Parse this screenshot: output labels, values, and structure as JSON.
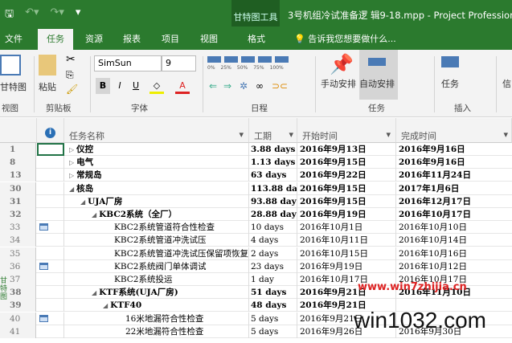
{
  "titlebar": {
    "tool_context": "甘特图工具",
    "title": "3号机组冷试准备逻 辑9-18.mpp - Project Professional"
  },
  "tabs": [
    {
      "label": "文件"
    },
    {
      "label": "任务",
      "active": true
    },
    {
      "label": "资源"
    },
    {
      "label": "报表"
    },
    {
      "label": "项目"
    },
    {
      "label": "视图"
    },
    {
      "label": "格式"
    }
  ],
  "tell_me": "告诉我您想要做什么...",
  "ribbon": {
    "view": {
      "gantt_label": "甘特图",
      "group": "视图"
    },
    "clipboard": {
      "paste_label": "粘贴",
      "group": "剪贴板"
    },
    "font": {
      "family": "SimSun",
      "size": "9",
      "bold": "B",
      "italic": "I",
      "underline": "U",
      "group": "字体"
    },
    "schedule": {
      "percents": [
        "0%",
        "25%",
        "50%",
        "75%",
        "100%"
      ],
      "group": "日程"
    },
    "tasks": {
      "manual": "手动安排",
      "auto": "自动安排",
      "group": "任务"
    },
    "insert": {
      "task": "任务",
      "group": "插入"
    },
    "info": "信"
  },
  "columns": [
    "任务名称",
    "工期",
    "开始时间",
    "完成时间"
  ],
  "rows": [
    {
      "id": "1",
      "name": "仪控",
      "dur": "3.88 days",
      "start": "2016年9月13日",
      "finish": "2016年9月16日",
      "bold": true,
      "level": 0,
      "toggle": "▷"
    },
    {
      "id": "8",
      "name": "电气",
      "dur": "1.13 days",
      "start": "2016年9月15日",
      "finish": "2016年9月16日",
      "bold": true,
      "level": 0,
      "toggle": "▷"
    },
    {
      "id": "13",
      "name": "常规岛",
      "dur": "63 days",
      "start": "2016年9月22日",
      "finish": "2016年11月24日",
      "bold": true,
      "level": 0,
      "toggle": "▷"
    },
    {
      "id": "30",
      "name": "核岛",
      "dur": "113.88 da",
      "start": "2016年9月15日",
      "finish": "2017年1月6日",
      "bold": true,
      "level": 0,
      "toggle": "◢"
    },
    {
      "id": "31",
      "name": "UJA厂房",
      "dur": "93.88 day",
      "start": "2016年9月15日",
      "finish": "2016年12月17日",
      "bold": true,
      "level": 1,
      "toggle": "◢"
    },
    {
      "id": "32",
      "name": "KBC2系统（全厂）",
      "dur": "28.88 day",
      "start": "2016年9月19日",
      "finish": "2016年10月17日",
      "bold": true,
      "level": 2,
      "toggle": "◢"
    },
    {
      "id": "33",
      "name": "KBC2系统管道符合性检查",
      "dur": "10 days",
      "start": "2016年10月1日",
      "finish": "2016年10月10日",
      "level": 3,
      "icon": true
    },
    {
      "id": "34",
      "name": "KBC2系统管道冲洗试压",
      "dur": "4 days",
      "start": "2016年10月11日",
      "finish": "2016年10月14日",
      "level": 3
    },
    {
      "id": "35",
      "name": "KBC2系统管道冲洗试压保留项恢复",
      "dur": "2 days",
      "start": "2016年10月15日",
      "finish": "2016年10月16日",
      "level": 3
    },
    {
      "id": "36",
      "name": "KBC2系统阀门单体调试",
      "dur": "23 days",
      "start": "2016年9月19日",
      "finish": "2016年10月12日",
      "level": 3,
      "icon": true
    },
    {
      "id": "37",
      "name": "KBC2系统投运",
      "dur": "1 day",
      "start": "2016年10月17日",
      "finish": "2016年10月17日",
      "level": 3
    },
    {
      "id": "38",
      "name": "KTF系统(UJA厂房)",
      "dur": "51 days",
      "start": "2016年9月21日",
      "finish": "2016年11月10日",
      "bold": true,
      "level": 2,
      "toggle": "◢"
    },
    {
      "id": "39",
      "name": "KTF40",
      "dur": "48 days",
      "start": "2016年9月21日",
      "finish": "",
      "bold": true,
      "level": 3,
      "toggle": "◢"
    },
    {
      "id": "40",
      "name": "16米地漏符合性检查",
      "dur": "5 days",
      "start": "2016年9月21日",
      "finish": "",
      "level": 4,
      "icon": true
    },
    {
      "id": "41",
      "name": "22米地漏符合性检查",
      "dur": "5 days",
      "start": "2016年9月26日",
      "finish": "2016年9月30日",
      "level": 4
    }
  ],
  "side_label": "甘特图",
  "watermark": {
    "url": "www.win7zhijia.cn",
    "brand": "win1032.com"
  }
}
